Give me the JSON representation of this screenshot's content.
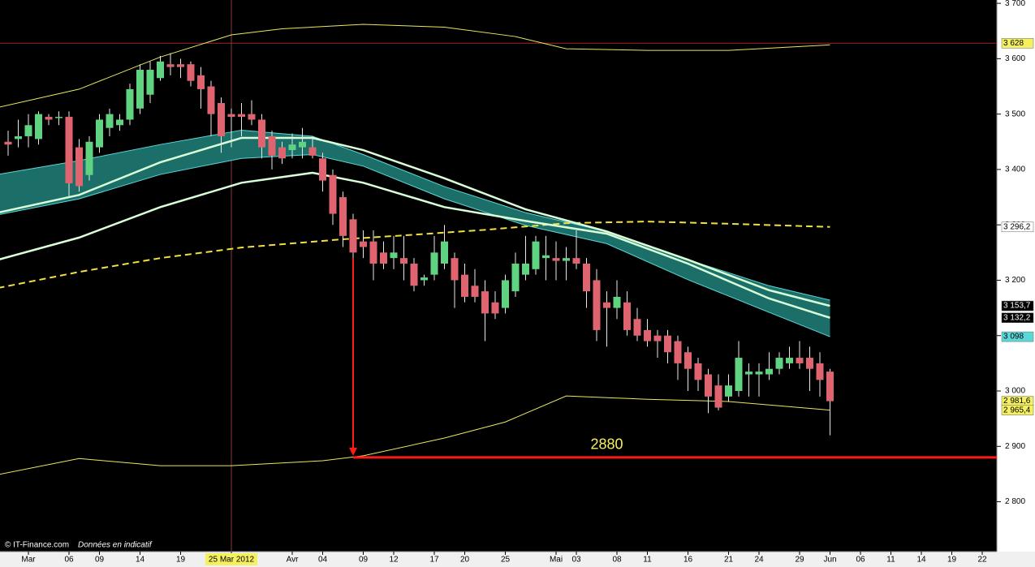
{
  "chart_data": {
    "type": "candlestick",
    "footer": "© IT-Finance.com",
    "footer_note": "Données en indicatif",
    "xlim": [
      -0.8,
      97.44
    ],
    "ylim": [
      2710,
      3706
    ],
    "x": [
      0,
      1,
      2,
      3,
      4,
      5,
      6,
      7,
      8,
      9,
      10,
      11,
      12,
      13,
      14,
      15,
      16,
      17,
      18,
      19,
      20,
      21,
      22,
      23,
      24,
      25,
      26,
      27,
      28,
      29,
      30,
      31,
      32,
      33,
      34,
      35,
      36,
      37,
      38,
      39,
      40,
      41,
      42,
      43,
      44,
      45,
      46,
      47,
      48,
      49,
      50,
      51,
      52,
      53,
      54,
      55,
      56,
      57,
      58,
      59,
      60,
      61,
      62,
      63,
      64,
      65,
      66,
      67,
      68,
      69,
      70,
      71,
      72,
      73,
      74,
      75,
      76,
      77,
      78,
      79,
      80,
      81
    ],
    "open": [
      3450,
      3455,
      3460,
      3455,
      3495,
      3495,
      3495,
      3440,
      3390,
      3440,
      3475,
      3480,
      3490,
      3510,
      3535,
      3565,
      3590,
      3590,
      3590,
      3570,
      3550,
      3520,
      3500,
      3500,
      3500,
      3490,
      3460,
      3440,
      3435,
      3440,
      3440,
      3420,
      3390,
      3350,
      3310,
      3270,
      3270,
      3250,
      3240,
      3240,
      3230,
      3200,
      3210,
      3230,
      3240,
      3210,
      3190,
      3180,
      3160,
      3150,
      3180,
      3210,
      3220,
      3240,
      3240,
      3235,
      3240,
      3230,
      3200,
      3160,
      3150,
      3160,
      3130,
      3110,
      3100,
      3100,
      3090,
      3070,
      3050,
      3030,
      3010,
      2990,
      3000,
      3030,
      3030,
      3030,
      3040,
      3050,
      3060,
      3060,
      3050,
      3035
    ],
    "high": [
      3470,
      3490,
      3500,
      3505,
      3500,
      3505,
      3505,
      3455,
      3460,
      3500,
      3510,
      3500,
      3555,
      3590,
      3595,
      3605,
      3610,
      3600,
      3595,
      3585,
      3560,
      3530,
      3510,
      3520,
      3525,
      3500,
      3470,
      3450,
      3465,
      3475,
      3460,
      3430,
      3400,
      3360,
      3320,
      3290,
      3290,
      3270,
      3280,
      3280,
      3240,
      3210,
      3280,
      3300,
      3250,
      3230,
      3220,
      3200,
      3180,
      3210,
      3250,
      3280,
      3280,
      3280,
      3270,
      3260,
      3290,
      3240,
      3220,
      3180,
      3200,
      3180,
      3150,
      3130,
      3110,
      3110,
      3100,
      3080,
      3060,
      3040,
      3030,
      3030,
      3090,
      3050,
      3050,
      3070,
      3070,
      3080,
      3090,
      3080,
      3070,
      3040
    ],
    "low": [
      3425,
      3440,
      3440,
      3445,
      3480,
      3480,
      3350,
      3360,
      3380,
      3430,
      3460,
      3470,
      3480,
      3500,
      3520,
      3560,
      3570,
      3565,
      3550,
      3510,
      3460,
      3430,
      3440,
      3460,
      3480,
      3420,
      3400,
      3410,
      3420,
      3420,
      3420,
      3360,
      3300,
      3260,
      3240,
      3240,
      3200,
      3220,
      3220,
      3200,
      3180,
      3190,
      3200,
      3220,
      3150,
      3160,
      3160,
      3090,
      3130,
      3140,
      3170,
      3200,
      3210,
      3200,
      3200,
      3200,
      3220,
      3150,
      3090,
      3080,
      3130,
      3100,
      3090,
      3080,
      3060,
      3050,
      3020,
      3000,
      3000,
      2960,
      2965,
      2980,
      2990,
      2990,
      2990,
      3020,
      3030,
      3040,
      3040,
      3000,
      2990,
      2920
    ],
    "close": [
      3445,
      3460,
      3480,
      3500,
      3490,
      3495,
      3375,
      3370,
      3450,
      3490,
      3500,
      3490,
      3545,
      3580,
      3580,
      3595,
      3585,
      3585,
      3560,
      3545,
      3500,
      3460,
      3495,
      3495,
      3490,
      3440,
      3425,
      3420,
      3445,
      3450,
      3425,
      3380,
      3320,
      3280,
      3250,
      3260,
      3230,
      3230,
      3250,
      3230,
      3190,
      3205,
      3250,
      3270,
      3200,
      3170,
      3170,
      3140,
      3140,
      3200,
      3230,
      3230,
      3270,
      3245,
      3235,
      3240,
      3230,
      3180,
      3110,
      3150,
      3170,
      3110,
      3100,
      3090,
      3090,
      3070,
      3050,
      3040,
      3020,
      2990,
      2970,
      3010,
      3060,
      3035,
      3035,
      3040,
      3060,
      3060,
      3050,
      3040,
      3020,
      2981.6
    ],
    "up_color": "#5fd37f",
    "down_color": "#e0646f",
    "wick_color": "#e8e8e8",
    "lines": [
      {
        "color": "#e8e860",
        "width": 1,
        "x": [
          -1,
          7,
          15,
          22,
          27,
          35,
          43,
          50,
          55,
          63,
          71,
          81
        ],
        "values": [
          3512,
          3545,
          3603,
          3643,
          3654,
          3662,
          3657,
          3640,
          3618,
          3615,
          3615,
          3625
        ]
      },
      {
        "color": "#e8e860",
        "width": 1,
        "x": [
          -1,
          7,
          15,
          22,
          31,
          35,
          43,
          49,
          55,
          63,
          71,
          81
        ],
        "values": [
          2849,
          2878,
          2865,
          2865,
          2874,
          2883,
          2915,
          2944,
          2991,
          2985,
          2981,
          2965.4
        ]
      },
      {
        "color": "#f0e040",
        "width": 2,
        "dash": true,
        "x": [
          -1,
          7,
          15,
          23,
          33,
          39,
          47,
          55,
          63,
          71,
          81
        ],
        "values": [
          3186,
          3215,
          3240,
          3259,
          3274,
          3281,
          3291,
          3303,
          3306,
          3302,
          3296.2
        ]
      },
      {
        "color": "#d8ffd8",
        "width": 2.5,
        "x": [
          -1,
          7,
          15,
          23,
          30,
          35,
          43,
          51,
          59,
          67,
          75,
          81
        ],
        "values": [
          3322,
          3354,
          3413,
          3457,
          3457,
          3435,
          3384,
          3328,
          3288,
          3237,
          3182,
          3153.7
        ]
      },
      {
        "color": "#d8ffd8",
        "width": 2.5,
        "x": [
          -1,
          7,
          15,
          23,
          30,
          35,
          43,
          51,
          59,
          67,
          75,
          81
        ],
        "values": [
          3237,
          3277,
          3332,
          3376,
          3394,
          3376,
          3332,
          3307,
          3284,
          3230,
          3167,
          3132.2
        ]
      }
    ],
    "band": {
      "fill": "#1c6e68",
      "edge": "#5ad8d8",
      "x": [
        -1,
        7,
        15,
        23,
        30,
        35,
        43,
        51,
        59,
        67,
        75,
        81
      ],
      "upper": [
        3391,
        3416,
        3445,
        3471,
        3460,
        3427,
        3369,
        3322,
        3288,
        3237,
        3190,
        3164
      ],
      "lower": [
        3318,
        3347,
        3391,
        3420,
        3427,
        3406,
        3347,
        3299,
        3266,
        3201,
        3142,
        3098
      ]
    },
    "hline": {
      "value": 3628,
      "color": "#a02828"
    },
    "vline": {
      "value": 22,
      "color": "#8a3a3a"
    },
    "target": {
      "value": 2880,
      "label": "2880",
      "x": 34,
      "from": 3240,
      "label_x": 59,
      "color": "#ff1a1a"
    },
    "yticks": [
      {
        "value": 3700,
        "label": "3 700"
      },
      {
        "value": 3600,
        "label": "3 600"
      },
      {
        "value": 3500,
        "label": "3 500"
      },
      {
        "value": 3400,
        "label": "3 400"
      },
      {
        "value": 3300,
        "label": "3 300"
      },
      {
        "value": 3200,
        "label": "3 200"
      },
      {
        "value": 3100,
        "label": "3 100"
      },
      {
        "value": 3000,
        "label": "3 000"
      },
      {
        "value": 2900,
        "label": "2 900"
      },
      {
        "value": 2800,
        "label": "2 800"
      }
    ],
    "value_tags": [
      {
        "value": 3628,
        "label": "3 628",
        "bg": "#f5f060",
        "fg": "#000"
      },
      {
        "value": 3296.2,
        "label": "3 296,2",
        "bg": "#ffffff",
        "fg": "#000"
      },
      {
        "value": 3153.7,
        "label": "3 153,7",
        "bg": "#000000",
        "fg": "#fff"
      },
      {
        "value": 3132.2,
        "label": "3 132,2",
        "bg": "#000000",
        "fg": "#fff"
      },
      {
        "value": 3098,
        "label": "3 098",
        "bg": "#5ad8d8",
        "fg": "#000"
      },
      {
        "value": 2981.6,
        "label": "2 981,6",
        "bg": "#f5f060",
        "fg": "#000"
      },
      {
        "value": 2965.4,
        "label": "2 965,4",
        "bg": "#f5f060",
        "fg": "#000"
      }
    ],
    "xticks": [
      {
        "value": 2,
        "label": "Mar"
      },
      {
        "value": 6,
        "label": "06"
      },
      {
        "value": 9,
        "label": "09"
      },
      {
        "value": 13,
        "label": "14"
      },
      {
        "value": 17,
        "label": "19"
      },
      {
        "value": 22,
        "label": "25 Mar 2012",
        "highlight": "#f5f060"
      },
      {
        "value": 28,
        "label": "Avr"
      },
      {
        "value": 31,
        "label": "04"
      },
      {
        "value": 35,
        "label": "09"
      },
      {
        "value": 38,
        "label": "12"
      },
      {
        "value": 42,
        "label": "17"
      },
      {
        "value": 45,
        "label": "20"
      },
      {
        "value": 49,
        "label": "25"
      },
      {
        "value": 54,
        "label": "Mai"
      },
      {
        "value": 56,
        "label": "03"
      },
      {
        "value": 60,
        "label": "08"
      },
      {
        "value": 63,
        "label": "11"
      },
      {
        "value": 67,
        "label": "16"
      },
      {
        "value": 71,
        "label": "21"
      },
      {
        "value": 74,
        "label": "24"
      },
      {
        "value": 78,
        "label": "29"
      },
      {
        "value": 81,
        "label": "Jun"
      },
      {
        "value": 84,
        "label": "06"
      },
      {
        "value": 87,
        "label": "11"
      },
      {
        "value": 90,
        "label": "14"
      },
      {
        "value": 93,
        "label": "19"
      },
      {
        "value": 96,
        "label": "22"
      }
    ]
  }
}
